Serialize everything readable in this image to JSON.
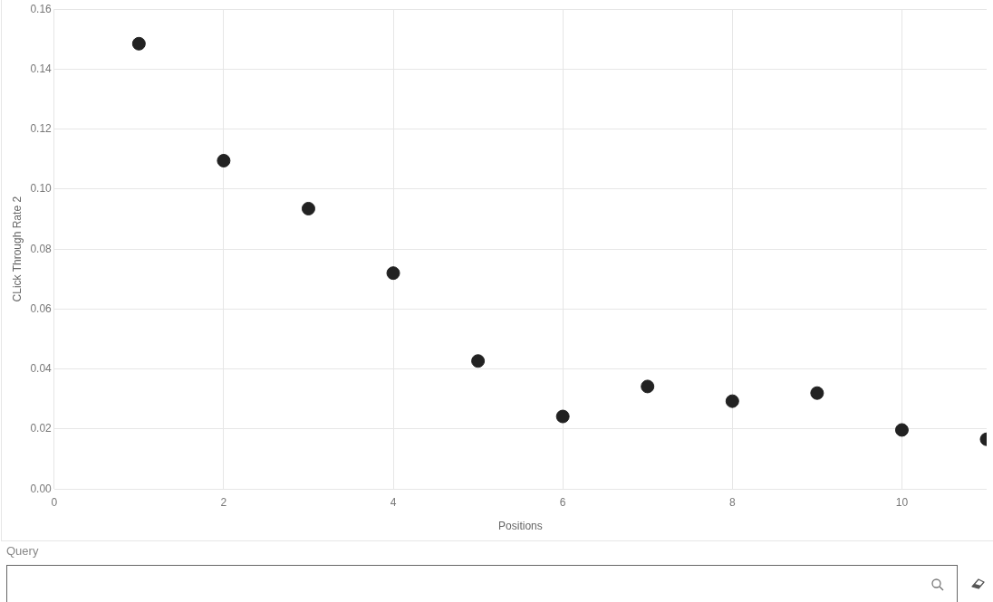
{
  "chart_data": {
    "type": "scatter",
    "xlabel": "Positions",
    "ylabel": "CLick Through Rate 2",
    "x": [
      1,
      2,
      3,
      4,
      5,
      6,
      7,
      8,
      9,
      10,
      11
    ],
    "series": [
      {
        "color": "#222222",
        "values": [
          0.1485,
          0.1095,
          0.0935,
          0.072,
          0.0427,
          0.0242,
          0.0342,
          0.0293,
          0.032,
          0.0197,
          0.0166
        ]
      }
    ],
    "xlim": [
      0,
      11
    ],
    "xticks": [
      0,
      2,
      4,
      6,
      8,
      10
    ],
    "ylim": [
      0,
      0.16
    ],
    "yticks": [
      {
        "value": 0,
        "label": "0.00"
      },
      {
        "value": 0.02,
        "label": "0.02"
      },
      {
        "value": 0.04,
        "label": "0.04"
      },
      {
        "value": 0.06,
        "label": "0.06"
      },
      {
        "value": 0.08,
        "label": "0.08"
      },
      {
        "value": 0.1,
        "label": "0.10"
      },
      {
        "value": 0.12,
        "label": "0.12"
      },
      {
        "value": 0.14,
        "label": "0.14"
      },
      {
        "value": 0.16,
        "label": "0.16"
      }
    ],
    "grid": true,
    "marker": "circle",
    "legend": false,
    "annotations": [
      "Query"
    ]
  }
}
